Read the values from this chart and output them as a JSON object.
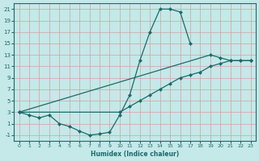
{
  "xlabel": "Humidex (Indice chaleur)",
  "xlim": [
    -0.5,
    23.5
  ],
  "ylim": [
    -2,
    22
  ],
  "xticks": [
    0,
    1,
    2,
    3,
    4,
    5,
    6,
    7,
    8,
    9,
    10,
    11,
    12,
    13,
    14,
    15,
    16,
    17,
    18,
    19,
    20,
    21,
    22,
    23
  ],
  "yticks": [
    -1,
    1,
    3,
    5,
    7,
    9,
    11,
    13,
    15,
    17,
    19,
    21
  ],
  "bg_color": "#c5e8e8",
  "line_color": "#1a6b6b",
  "grid_color": "#b0d8d8",
  "curve1_x": [
    0,
    1,
    2,
    3,
    4,
    5,
    6,
    7,
    8,
    9,
    10,
    11,
    12,
    13,
    14,
    15,
    16,
    17
  ],
  "curve1_y": [
    3,
    2.5,
    2,
    2.5,
    1,
    0.5,
    -0.3,
    -1,
    -0.8,
    -0.5,
    2.5,
    6,
    12,
    17,
    21,
    21,
    20.5,
    15
  ],
  "curve2_x": [
    0,
    19,
    20,
    21,
    22,
    23
  ],
  "curve2_y": [
    3,
    13,
    12.5,
    12,
    12,
    12
  ],
  "curve3_x": [
    0,
    10,
    11,
    12,
    13,
    14,
    15,
    16,
    17,
    18,
    19,
    20,
    21,
    22,
    23
  ],
  "curve3_y": [
    3,
    3,
    4,
    5,
    6,
    7,
    8,
    9,
    9.5,
    10,
    11,
    11.5,
    12,
    12,
    12
  ]
}
